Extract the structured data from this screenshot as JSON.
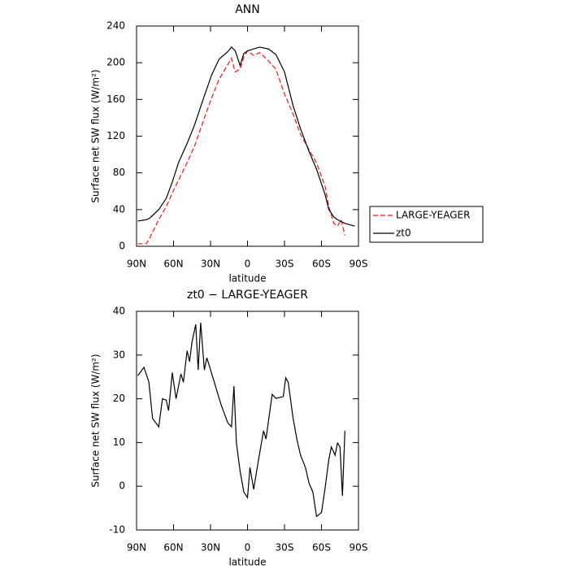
{
  "chart_data": [
    {
      "type": "line",
      "title": "ANN",
      "xlabel": "latitude",
      "ylabel": "Surface net SW flux (W/m²)",
      "x": [
        89,
        82,
        79,
        72,
        66,
        61,
        56,
        49,
        43,
        36,
        29,
        23,
        16,
        13,
        10,
        6,
        3,
        0,
        -5,
        -10,
        -17,
        -23,
        -30,
        -37,
        -43,
        -50,
        -56,
        -63,
        -66,
        -70,
        -73,
        -76,
        -79,
        -87
      ],
      "series": [
        {
          "name": "LARGE-YEAGER",
          "color": "#e8141c",
          "linestyle": "dashed",
          "values": [
            2.6,
            3,
            10,
            29,
            43,
            58,
            72,
            91,
            109,
            136,
            162,
            182,
            198,
            205,
            190,
            193,
            206,
            213,
            208,
            211,
            202,
            193,
            166,
            144,
            122,
            105,
            91,
            65,
            43,
            25,
            22,
            29,
            12,
            null
          ]
        },
        {
          "name": "zt0",
          "color": "#000000",
          "linestyle": "solid",
          "values": [
            27.5,
            29,
            31,
            40,
            52,
            70,
            91,
            112,
            132,
            160,
            187,
            204,
            212,
            217,
            213,
            197,
            210,
            213,
            215,
            217,
            215,
            209,
            190,
            153,
            128,
            103,
            84,
            56,
            40,
            32,
            29,
            27,
            25,
            22
          ]
        }
      ],
      "xlim": [
        90,
        -90
      ],
      "xticks": [
        {
          "value": 90,
          "label": "90N"
        },
        {
          "value": 60,
          "label": "60N"
        },
        {
          "value": 30,
          "label": "30N"
        },
        0,
        {
          "value": -30,
          "label": "30S"
        },
        {
          "value": -60,
          "label": "60S"
        },
        {
          "value": -90,
          "label": "90S"
        }
      ],
      "ylim": [
        0,
        240
      ],
      "yticks": [
        0,
        40,
        80,
        120,
        160,
        200,
        240
      ],
      "legend": "right"
    },
    {
      "type": "line",
      "title": "zt0 − LARGE-YEAGER",
      "xlabel": "latitude",
      "ylabel": "Surface net SW flux (W/m²)",
      "x": [
        89,
        84,
        80,
        77,
        72,
        69,
        66,
        64,
        61,
        58,
        54,
        52,
        49,
        47,
        45,
        42,
        40,
        38,
        35,
        33,
        28,
        24,
        21,
        16,
        13,
        11,
        9,
        6,
        3,
        0,
        -2,
        -5,
        -9,
        -13,
        -15,
        -20,
        -23,
        -29,
        -31,
        -33,
        -37,
        -40,
        -43,
        -47,
        -50,
        -53,
        -56,
        -60,
        -63,
        -66,
        -68,
        -71,
        -73,
        -75,
        -77,
        -79
      ],
      "series": [
        {
          "name": "zt0 − LARGE-YEAGER",
          "color": "#000000",
          "linestyle": "solid",
          "values": [
            25.3,
            27.2,
            23.8,
            15.5,
            13.6,
            20,
            19.7,
            17.3,
            26,
            20,
            25.7,
            23.8,
            31,
            28.5,
            33,
            37,
            26.6,
            37.4,
            26.6,
            29.4,
            24.8,
            21,
            18.3,
            14.5,
            13.6,
            22.9,
            9.9,
            3.4,
            -1.3,
            -2.6,
            4.3,
            -0.7,
            6.2,
            12.7,
            10.8,
            21,
            20.1,
            20.5,
            24.8,
            23.8,
            15.5,
            10.8,
            7.1,
            4.3,
            0.6,
            -1.3,
            -6.9,
            -6,
            -0.3,
            6.2,
            9,
            7.1,
            9.9,
            9,
            -2.2,
            12.7
          ]
        }
      ],
      "xlim": [
        90,
        -90
      ],
      "xticks": [
        {
          "value": 90,
          "label": "90N"
        },
        {
          "value": 60,
          "label": "60N"
        },
        {
          "value": 30,
          "label": "30N"
        },
        0,
        {
          "value": -30,
          "label": "30S"
        },
        {
          "value": -60,
          "label": "60S"
        },
        {
          "value": -90,
          "label": "90S"
        }
      ],
      "ylim": [
        -10,
        40
      ],
      "yticks": [
        -10,
        0,
        10,
        20,
        30,
        40
      ]
    }
  ]
}
